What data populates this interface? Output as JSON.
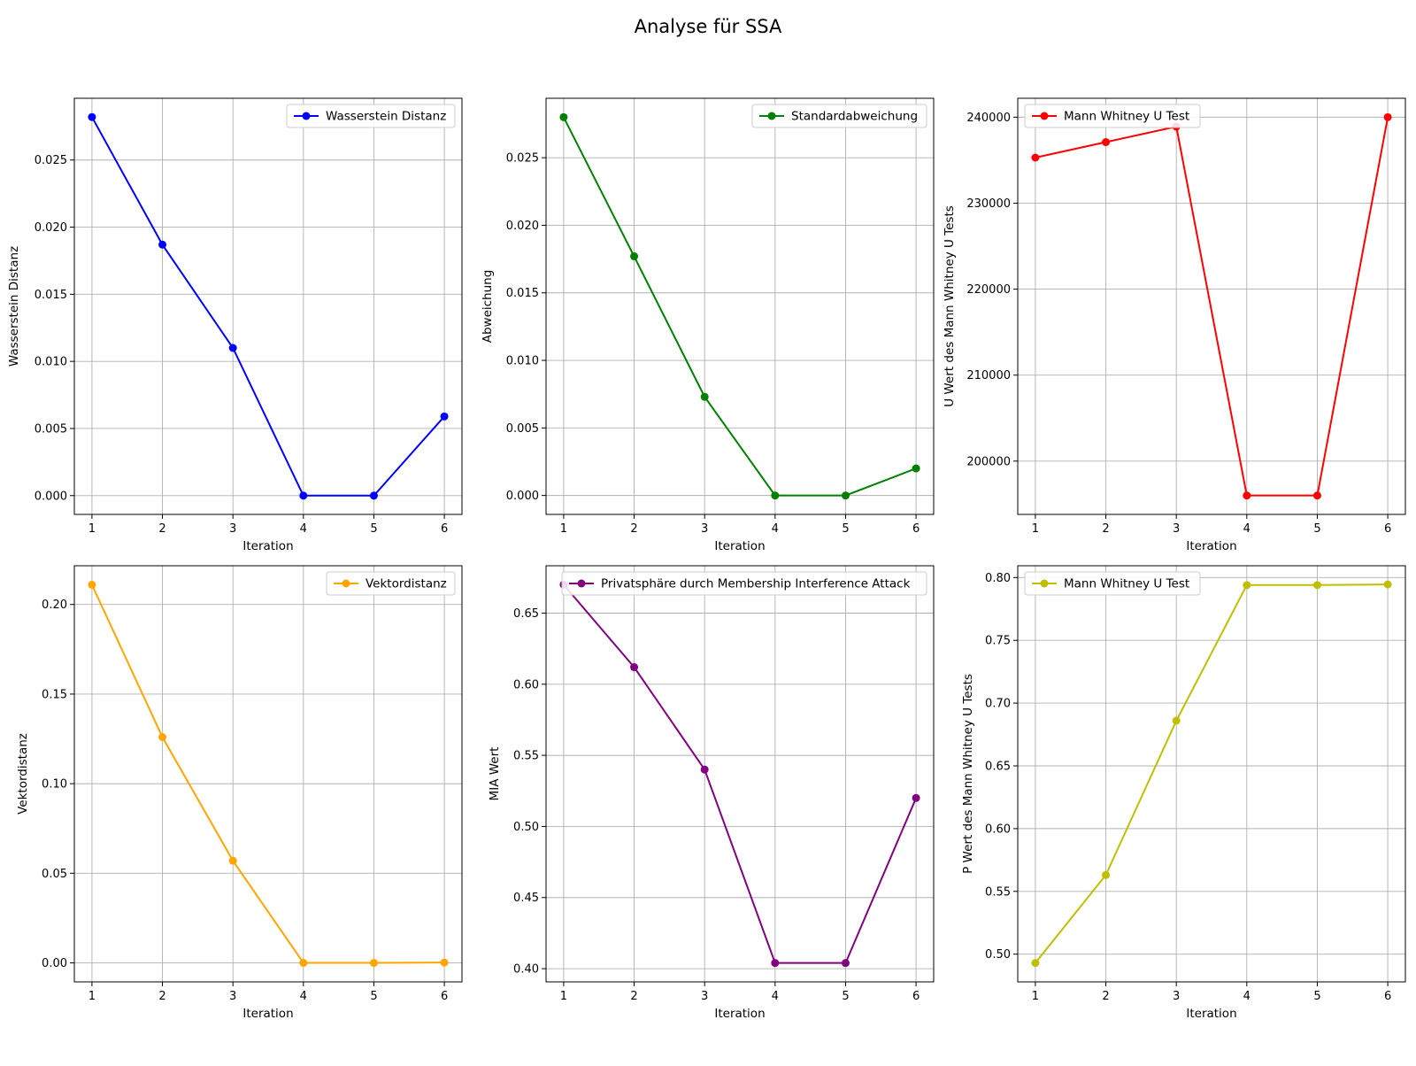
{
  "figure": {
    "title": "Analyse für SSA"
  },
  "chart_data": [
    {
      "type": "line",
      "x": [
        1,
        2,
        3,
        4,
        5,
        6
      ],
      "series": [
        {
          "name": "Wasserstein Distanz",
          "values": [
            0.0282,
            0.0187,
            0.011,
            0.0,
            0.0,
            0.0059
          ],
          "color": "#0000ff"
        }
      ],
      "xlabel": "Iteration",
      "ylabel": "Wasserstein Distanz",
      "xlim": [
        0.75,
        6.25
      ],
      "ylim": [
        -0.0014,
        0.0296
      ],
      "yticks": [
        0.0,
        0.005,
        0.01,
        0.015,
        0.02,
        0.025
      ],
      "ytick_labels": [
        "0.000",
        "0.005",
        "0.010",
        "0.015",
        "0.020",
        "0.025"
      ],
      "xticks": [
        1,
        2,
        3,
        4,
        5,
        6
      ],
      "grid": true,
      "legend": "upper right"
    },
    {
      "type": "line",
      "x": [
        1,
        2,
        3,
        4,
        5,
        6
      ],
      "series": [
        {
          "name": "Standardabweichung",
          "values": [
            0.028,
            0.0177,
            0.0073,
            0.0,
            0.0,
            0.002
          ],
          "color": "#008000"
        }
      ],
      "xlabel": "Iteration",
      "ylabel": "Abweichung",
      "xlim": [
        0.75,
        6.25
      ],
      "ylim": [
        -0.0014,
        0.0294
      ],
      "yticks": [
        0.0,
        0.005,
        0.01,
        0.015,
        0.02,
        0.025
      ],
      "ytick_labels": [
        "0.000",
        "0.005",
        "0.010",
        "0.015",
        "0.020",
        "0.025"
      ],
      "xticks": [
        1,
        2,
        3,
        4,
        5,
        6
      ],
      "grid": true,
      "legend": "upper right"
    },
    {
      "type": "line",
      "x": [
        1,
        2,
        3,
        4,
        5,
        6
      ],
      "series": [
        {
          "name": "Mann Whitney U Test",
          "values": [
            235300,
            237100,
            238900,
            196000,
            196000,
            240000
          ],
          "color": "#ff0000"
        }
      ],
      "xlabel": "Iteration",
      "ylabel": "U Wert des Mann Whitney U Tests",
      "xlim": [
        0.75,
        6.25
      ],
      "ylim": [
        193800,
        242200
      ],
      "yticks": [
        200000,
        210000,
        220000,
        230000,
        240000
      ],
      "ytick_labels": [
        "200000",
        "210000",
        "220000",
        "230000",
        "240000"
      ],
      "xticks": [
        1,
        2,
        3,
        4,
        5,
        6
      ],
      "grid": true,
      "legend": "upper left"
    },
    {
      "type": "line",
      "x": [
        1,
        2,
        3,
        4,
        5,
        6
      ],
      "series": [
        {
          "name": "Vektordistanz",
          "values": [
            0.211,
            0.126,
            0.057,
            0.0,
            0.0,
            0.0002
          ],
          "color": "#ffa500"
        }
      ],
      "xlabel": "Iteration",
      "ylabel": "Vektordistanz",
      "xlim": [
        0.75,
        6.25
      ],
      "ylim": [
        -0.0106,
        0.2216
      ],
      "yticks": [
        0.0,
        0.05,
        0.1,
        0.15,
        0.2
      ],
      "ytick_labels": [
        "0.00",
        "0.05",
        "0.10",
        "0.15",
        "0.20"
      ],
      "xticks": [
        1,
        2,
        3,
        4,
        5,
        6
      ],
      "grid": true,
      "legend": "upper right"
    },
    {
      "type": "line",
      "x": [
        1,
        2,
        3,
        4,
        5,
        6
      ],
      "series": [
        {
          "name": "Privatsphäre durch Membership Interference Attack",
          "values": [
            0.67,
            0.612,
            0.54,
            0.404,
            0.404,
            0.52
          ],
          "color": "#800080"
        }
      ],
      "xlabel": "Iteration",
      "ylabel": "MIA Wert",
      "xlim": [
        0.75,
        6.25
      ],
      "ylim": [
        0.3907,
        0.6833
      ],
      "yticks": [
        0.4,
        0.45,
        0.5,
        0.55,
        0.6,
        0.65
      ],
      "ytick_labels": [
        "0.40",
        "0.45",
        "0.50",
        "0.55",
        "0.60",
        "0.65"
      ],
      "xticks": [
        1,
        2,
        3,
        4,
        5,
        6
      ],
      "grid": true,
      "legend": "upper right"
    },
    {
      "type": "line",
      "x": [
        1,
        2,
        3,
        4,
        5,
        6
      ],
      "series": [
        {
          "name": "Mann Whitney U Test",
          "values": [
            0.493,
            0.563,
            0.686,
            0.794,
            0.794,
            0.7945
          ],
          "color": "#bfbf00"
        }
      ],
      "xlabel": "Iteration",
      "ylabel": "P Wert des Mann Whitney U Tests",
      "xlim": [
        0.75,
        6.25
      ],
      "ylim": [
        0.4779,
        0.8094
      ],
      "yticks": [
        0.5,
        0.55,
        0.6,
        0.65,
        0.7,
        0.75,
        0.8
      ],
      "ytick_labels": [
        "0.50",
        "0.55",
        "0.60",
        "0.65",
        "0.70",
        "0.75",
        "0.80"
      ],
      "xticks": [
        1,
        2,
        3,
        4,
        5,
        6
      ],
      "grid": true,
      "legend": "upper left"
    }
  ]
}
